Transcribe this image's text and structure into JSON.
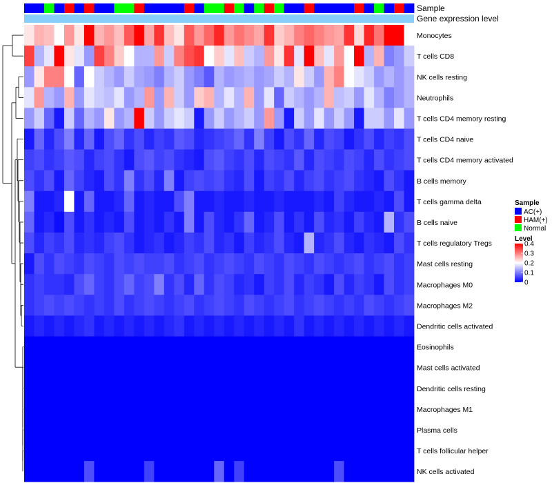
{
  "chart_data": {
    "type": "heatmap",
    "title": "",
    "annotation_labels": [
      "Sample",
      "Gene expression level"
    ],
    "sample_colors": {
      "AC(+)": "#0000ff",
      "HAM(+)": "#ff0000",
      "Normal": "#00ff00"
    },
    "annotation_bar_color": "#87cefa",
    "samples": [
      "A",
      "A",
      "N",
      "A",
      "H",
      "A",
      "H",
      "A",
      "A",
      "N",
      "N",
      "H",
      "A",
      "A",
      "A",
      "A",
      "H",
      "A",
      "N",
      "N",
      "H",
      "N",
      "A",
      "N",
      "H",
      "N",
      "A",
      "A",
      "H",
      "A",
      "A",
      "A",
      "A",
      "H",
      "A",
      "N",
      "A",
      "H",
      "A"
    ],
    "rows": [
      "Monocytes",
      "T cells CD8",
      "NK cells resting",
      "Neutrophils",
      "T cells CD4 memory resting",
      "T cells CD4 naive",
      "T cells CD4 memory activated",
      "B cells memory",
      "T cells gamma delta",
      "B cells naive",
      "T cells regulatory  Tregs",
      "Mast cells resting",
      "Macrophages M0",
      "Macrophages M2",
      "Dendritic cells activated",
      "Eosinophils",
      "Mast cells activated",
      "Dendritic cells resting",
      "Macrophages M1",
      "Plasma cells",
      "T cells follicular helper",
      "NK cells activated"
    ],
    "values": [
      [
        0.22,
        0.26,
        0.25,
        0.2,
        0.28,
        0.22,
        0.4,
        0.26,
        0.28,
        0.25,
        0.33,
        0.4,
        0.27,
        0.36,
        0.25,
        0.22,
        0.33,
        0.28,
        0.32,
        0.37,
        0.28,
        0.31,
        0.29,
        0.27,
        0.36,
        0.24,
        0.26,
        0.3,
        0.32,
        0.3,
        0.28,
        0.27,
        0.36,
        0.23,
        0.37,
        0.31,
        0.4,
        0.4,
        0.2
      ],
      [
        0.35,
        0.14,
        0.18,
        0.4,
        0.22,
        0.18,
        0.12,
        0.35,
        0.3,
        0.24,
        0.2,
        0.14,
        0.14,
        0.28,
        0.16,
        0.3,
        0.34,
        0.36,
        0.2,
        0.24,
        0.18,
        0.25,
        0.16,
        0.14,
        0.28,
        0.22,
        0.36,
        0.18,
        0.4,
        0.25,
        0.18,
        0.28,
        0.2,
        0.4,
        0.14,
        0.26,
        0.1,
        0.12,
        0.16
      ],
      [
        0.12,
        0.22,
        0.3,
        0.3,
        0.2,
        0.08,
        0.2,
        0.16,
        0.14,
        0.12,
        0.16,
        0.13,
        0.12,
        0.1,
        0.14,
        0.16,
        0.12,
        0.1,
        0.07,
        0.14,
        0.12,
        0.13,
        0.14,
        0.12,
        0.13,
        0.16,
        0.14,
        0.22,
        0.16,
        0.12,
        0.26,
        0.3,
        0.2,
        0.18,
        0.16,
        0.12,
        0.14,
        0.12,
        0.14
      ],
      [
        0.18,
        0.28,
        0.14,
        0.12,
        0.26,
        0.12,
        0.18,
        0.16,
        0.15,
        0.18,
        0.12,
        0.14,
        0.28,
        0.12,
        0.26,
        0.16,
        0.12,
        0.24,
        0.26,
        0.14,
        0.18,
        0.14,
        0.26,
        0.12,
        0.18,
        0.08,
        0.16,
        0.14,
        0.12,
        0.14,
        0.26,
        0.15,
        0.16,
        0.12,
        0.18,
        0.14,
        0.1,
        0.12,
        0.14
      ],
      [
        0.12,
        0.16,
        0.08,
        0.02,
        0.16,
        0.08,
        0.14,
        0.12,
        0.22,
        0.12,
        0.14,
        0.4,
        0.16,
        0.12,
        0.16,
        0.18,
        0.16,
        0.02,
        0.12,
        0.16,
        0.12,
        0.14,
        0.16,
        0.12,
        0.28,
        0.12,
        0.02,
        0.16,
        0.12,
        0.18,
        0.12,
        0.16,
        0.12,
        0.02,
        0.16,
        0.16,
        0.12,
        0.18,
        0.12
      ],
      [
        0.02,
        0.08,
        0.03,
        0.06,
        0.1,
        0.03,
        0.08,
        0.02,
        0.06,
        0.08,
        0.04,
        0.06,
        0.03,
        0.05,
        0.04,
        0.07,
        0.06,
        0.03,
        0.04,
        0.05,
        0.06,
        0.08,
        0.04,
        0.1,
        0.05,
        0.02,
        0.06,
        0.04,
        0.08,
        0.03,
        0.06,
        0.05,
        0.02,
        0.04,
        0.06,
        0.03,
        0.05,
        0.04,
        0.06
      ],
      [
        0.05,
        0.06,
        0.04,
        0.05,
        0.07,
        0.06,
        0.03,
        0.05,
        0.06,
        0.04,
        0.02,
        0.06,
        0.07,
        0.05,
        0.06,
        0.04,
        0.03,
        0.02,
        0.06,
        0.07,
        0.05,
        0.04,
        0.06,
        0.03,
        0.06,
        0.05,
        0.04,
        0.07,
        0.03,
        0.06,
        0.05,
        0.04,
        0.06,
        0.05,
        0.03,
        0.06,
        0.04,
        0.05,
        0.06
      ],
      [
        0.06,
        0.04,
        0.06,
        0.02,
        0.08,
        0.05,
        0.03,
        0.02,
        0.06,
        0.04,
        0.1,
        0.04,
        0.06,
        0.03,
        0.1,
        0.02,
        0.05,
        0.06,
        0.05,
        0.06,
        0.04,
        0.03,
        0.06,
        0.02,
        0.05,
        0.04,
        0.06,
        0.03,
        0.05,
        0.06,
        0.04,
        0.05,
        0.06,
        0.04,
        0.03,
        0.02,
        0.06,
        0.04,
        0.02
      ],
      [
        0.1,
        0.02,
        0.02,
        0.03,
        0.2,
        0.02,
        0.08,
        0.02,
        0.02,
        0.03,
        0.08,
        0.02,
        0.03,
        0.02,
        0.02,
        0.06,
        0.1,
        0.02,
        0.02,
        0.03,
        0.02,
        0.02,
        0.03,
        0.02,
        0.02,
        0.03,
        0.02,
        0.02,
        0.02,
        0.03,
        0.02,
        0.05,
        0.03,
        0.02,
        0.02,
        0.03,
        0.02,
        0.06,
        0.02
      ],
      [
        0.08,
        0.02,
        0.03,
        0.01,
        0.06,
        0.02,
        0.04,
        0.02,
        0.03,
        0.02,
        0.06,
        0.02,
        0.03,
        0.02,
        0.04,
        0.02,
        0.1,
        0.02,
        0.06,
        0.03,
        0.02,
        0.04,
        0.08,
        0.02,
        0.03,
        0.06,
        0.02,
        0.04,
        0.02,
        0.06,
        0.03,
        0.04,
        0.02,
        0.05,
        0.03,
        0.02,
        0.14,
        0.04,
        0.06
      ],
      [
        0.06,
        0.03,
        0.05,
        0.04,
        0.06,
        0.03,
        0.04,
        0.03,
        0.05,
        0.06,
        0.04,
        0.02,
        0.03,
        0.04,
        0.02,
        0.03,
        0.05,
        0.04,
        0.06,
        0.03,
        0.04,
        0.02,
        0.05,
        0.03,
        0.04,
        0.06,
        0.03,
        0.02,
        0.14,
        0.03,
        0.04,
        0.06,
        0.03,
        0.02,
        0.04,
        0.03,
        0.02,
        0.06,
        0.04
      ],
      [
        0.02,
        0.06,
        0.04,
        0.06,
        0.05,
        0.04,
        0.06,
        0.05,
        0.04,
        0.06,
        0.05,
        0.06,
        0.05,
        0.05,
        0.06,
        0.04,
        0.05,
        0.06,
        0.04,
        0.05,
        0.06,
        0.05,
        0.04,
        0.06,
        0.05,
        0.04,
        0.06,
        0.05,
        0.04,
        0.06,
        0.05,
        0.04,
        0.05,
        0.06,
        0.04,
        0.05,
        0.06,
        0.04,
        0.05
      ],
      [
        0.04,
        0.05,
        0.04,
        0.04,
        0.03,
        0.06,
        0.08,
        0.05,
        0.04,
        0.06,
        0.08,
        0.05,
        0.06,
        0.1,
        0.04,
        0.06,
        0.03,
        0.08,
        0.04,
        0.06,
        0.05,
        0.03,
        0.04,
        0.02,
        0.05,
        0.04,
        0.06,
        0.03,
        0.05,
        0.04,
        0.02,
        0.06,
        0.03,
        0.05,
        0.04,
        0.02,
        0.06,
        0.04,
        0.05
      ],
      [
        0.04,
        0.05,
        0.06,
        0.05,
        0.06,
        0.05,
        0.04,
        0.05,
        0.04,
        0.06,
        0.04,
        0.05,
        0.06,
        0.05,
        0.04,
        0.05,
        0.06,
        0.04,
        0.05,
        0.06,
        0.05,
        0.04,
        0.06,
        0.05,
        0.04,
        0.05,
        0.06,
        0.04,
        0.05,
        0.06,
        0.05,
        0.04,
        0.05,
        0.04,
        0.06,
        0.05,
        0.04,
        0.05,
        0.06
      ],
      [
        0.02,
        0.03,
        0.02,
        0.03,
        0.02,
        0.03,
        0.04,
        0.02,
        0.03,
        0.02,
        0.03,
        0.02,
        0.03,
        0.02,
        0.03,
        0.04,
        0.02,
        0.03,
        0.02,
        0.03,
        0.02,
        0.03,
        0.02,
        0.03,
        0.02,
        0.03,
        0.02,
        0.04,
        0.02,
        0.03,
        0.02,
        0.03,
        0.02,
        0.03,
        0.02,
        0.03,
        0.02,
        0.03,
        0.02
      ],
      [
        0.0,
        0.0,
        0.0,
        0.0,
        0.0,
        0.0,
        0.0,
        0.0,
        0.0,
        0.0,
        0.0,
        0.0,
        0.0,
        0.0,
        0.0,
        0.0,
        0.0,
        0.0,
        0.0,
        0.0,
        0.0,
        0.0,
        0.0,
        0.0,
        0.0,
        0.0,
        0.0,
        0.0,
        0.0,
        0.0,
        0.0,
        0.0,
        0.0,
        0.0,
        0.0,
        0.0,
        0.0,
        0.0,
        0.0
      ],
      [
        0.0,
        0.0,
        0.0,
        0.0,
        0.0,
        0.0,
        0.0,
        0.0,
        0.0,
        0.0,
        0.0,
        0.0,
        0.0,
        0.0,
        0.0,
        0.0,
        0.0,
        0.0,
        0.0,
        0.0,
        0.0,
        0.0,
        0.0,
        0.0,
        0.0,
        0.0,
        0.0,
        0.0,
        0.0,
        0.0,
        0.0,
        0.0,
        0.0,
        0.0,
        0.0,
        0.0,
        0.0,
        0.0,
        0.0
      ],
      [
        0.0,
        0.0,
        0.0,
        0.0,
        0.0,
        0.0,
        0.0,
        0.0,
        0.0,
        0.0,
        0.0,
        0.0,
        0.0,
        0.0,
        0.0,
        0.0,
        0.0,
        0.0,
        0.0,
        0.0,
        0.0,
        0.0,
        0.0,
        0.0,
        0.0,
        0.0,
        0.0,
        0.0,
        0.0,
        0.0,
        0.0,
        0.0,
        0.0,
        0.0,
        0.0,
        0.0,
        0.0,
        0.0,
        0.0
      ],
      [
        0.0,
        0.0,
        0.0,
        0.0,
        0.0,
        0.0,
        0.0,
        0.0,
        0.0,
        0.0,
        0.0,
        0.0,
        0.0,
        0.0,
        0.0,
        0.0,
        0.0,
        0.0,
        0.0,
        0.0,
        0.0,
        0.0,
        0.0,
        0.0,
        0.0,
        0.0,
        0.0,
        0.0,
        0.0,
        0.0,
        0.0,
        0.0,
        0.0,
        0.0,
        0.0,
        0.0,
        0.0,
        0.0,
        0.0
      ],
      [
        0.0,
        0.0,
        0.0,
        0.0,
        0.0,
        0.0,
        0.0,
        0.0,
        0.0,
        0.0,
        0.0,
        0.0,
        0.0,
        0.0,
        0.0,
        0.0,
        0.0,
        0.0,
        0.0,
        0.0,
        0.0,
        0.0,
        0.0,
        0.0,
        0.0,
        0.0,
        0.0,
        0.0,
        0.0,
        0.0,
        0.0,
        0.0,
        0.0,
        0.0,
        0.0,
        0.0,
        0.0,
        0.0,
        0.0
      ],
      [
        0.0,
        0.0,
        0.0,
        0.0,
        0.0,
        0.0,
        0.0,
        0.0,
        0.0,
        0.0,
        0.0,
        0.0,
        0.0,
        0.0,
        0.0,
        0.0,
        0.0,
        0.0,
        0.0,
        0.0,
        0.0,
        0.0,
        0.0,
        0.0,
        0.0,
        0.0,
        0.0,
        0.0,
        0.0,
        0.0,
        0.0,
        0.0,
        0.0,
        0.0,
        0.0,
        0.0,
        0.0,
        0.0,
        0.0
      ],
      [
        0.0,
        0.0,
        0.0,
        0.0,
        0.0,
        0.0,
        0.06,
        0.0,
        0.0,
        0.0,
        0.0,
        0.0,
        0.05,
        0.0,
        0.0,
        0.0,
        0.0,
        0.0,
        0.0,
        0.08,
        0.0,
        0.05,
        0.0,
        0.0,
        0.0,
        0.0,
        0.0,
        0.0,
        0.0,
        0.0,
        0.0,
        0.06,
        0.0,
        0.0,
        0.0,
        0.0,
        0.0,
        0.0,
        0.0
      ]
    ],
    "legend": {
      "sample_title": "Sample",
      "sample_entries": [
        "AC(+)",
        "HAM(+)",
        "Normal"
      ],
      "level_title": "Level",
      "level_ticks": [
        0.4,
        0.3,
        0.2,
        0.1,
        0
      ],
      "level_range": [
        0,
        0.4
      ],
      "color_low": "#0000ff",
      "color_mid": "#ffffff",
      "color_high": "#ff0000",
      "placement": "right"
    }
  }
}
